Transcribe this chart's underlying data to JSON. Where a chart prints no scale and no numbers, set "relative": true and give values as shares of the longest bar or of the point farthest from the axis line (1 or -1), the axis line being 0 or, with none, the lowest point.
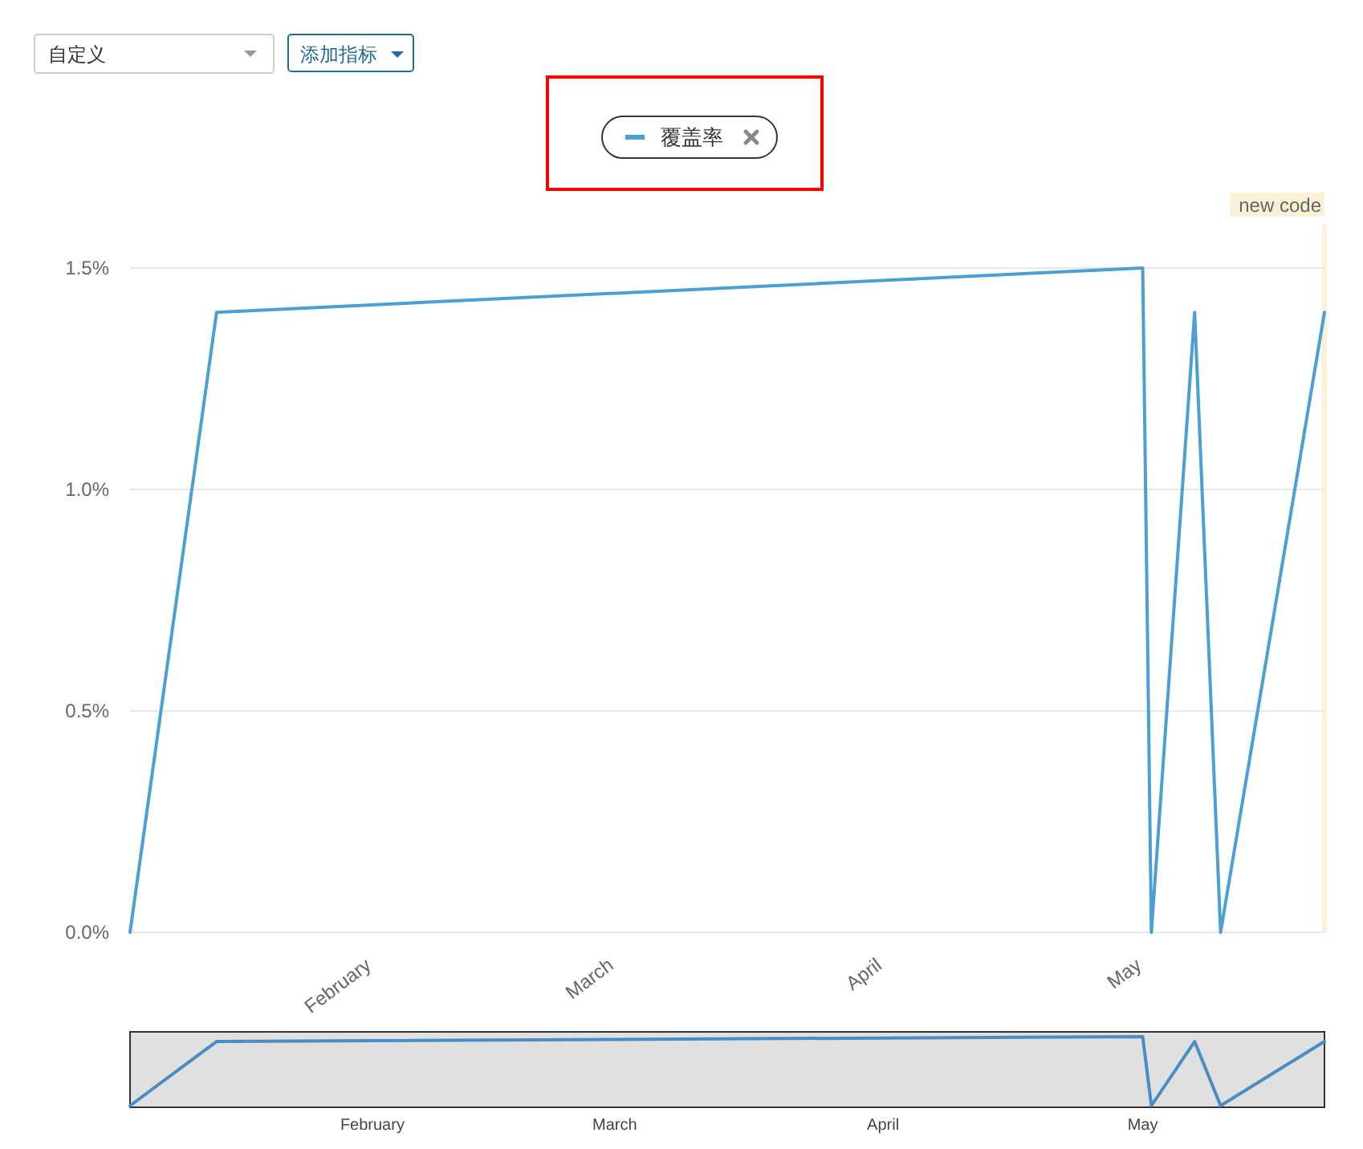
{
  "chart_data": [
    {
      "type": "line",
      "annotations": [
        "自定义",
        "添加指标"
      ],
      "x": [
        "--01-04",
        "--01-14",
        "--05-01",
        "--05-02",
        "--05-07",
        "--05-10",
        "--05-22"
      ],
      "xlim": [
        "--01-04",
        "--05-22"
      ],
      "xticks": [
        {
          "value": "--02-01",
          "label": "February"
        },
        {
          "value": "--03-01",
          "label": "March"
        },
        {
          "value": "--04-01",
          "label": "April"
        },
        {
          "value": "--05-01",
          "label": "May"
        }
      ],
      "ylim": [
        0,
        1.5
      ],
      "yticks": [
        {
          "value": 0,
          "label": "0.0%"
        },
        {
          "value": 0.5,
          "label": "0.5%"
        },
        {
          "value": 1,
          "label": "1.0%"
        },
        {
          "value": 1.5,
          "label": "1.5%"
        }
      ],
      "series": [
        {
          "name": "覆盖率",
          "color": "#4b9fd5",
          "values": [
            0,
            1.4,
            1.5,
            0,
            1.4,
            0,
            1.4
          ]
        }
      ],
      "ref_lines": [
        {
          "axis": "x",
          "value": "--05-22",
          "label": "new code",
          "color": "#f9f0d5"
        }
      ],
      "grid": "y",
      "legend": "top"
    },
    {
      "type": "line",
      "x": [
        "--01-04",
        "--01-14",
        "--05-01",
        "--05-02",
        "--05-07",
        "--05-10",
        "--05-22"
      ],
      "xlim": [
        "--01-04",
        "--05-22"
      ],
      "xticks": [
        {
          "value": "--02-01",
          "label": "February"
        },
        {
          "value": "--03-01",
          "label": "March"
        },
        {
          "value": "--04-01",
          "label": "April"
        },
        {
          "value": "--05-01",
          "label": "May"
        }
      ],
      "relative": true,
      "series": [
        {
          "color": "#4a8cc4",
          "values": [
            0,
            0.93,
            1,
            0,
            0.93,
            0,
            0.93
          ]
        }
      ]
    }
  ]
}
